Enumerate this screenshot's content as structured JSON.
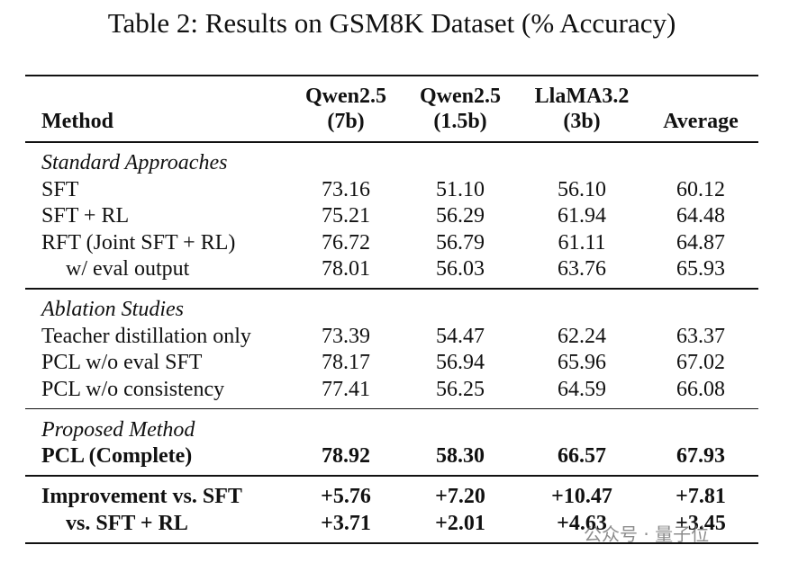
{
  "title": "Table 2: Results on GSM8K Dataset (% Accuracy)",
  "header": {
    "method": "Method",
    "columns": [
      [
        "Qwen2.5",
        "(7b)"
      ],
      [
        "Qwen2.5",
        "(1.5b)"
      ],
      [
        "LlaMA3.2",
        "(3b)"
      ],
      [
        "Average"
      ]
    ]
  },
  "sections": [
    {
      "title": "Standard Approaches",
      "rows": [
        {
          "method": "SFT",
          "values": [
            "73.16",
            "51.10",
            "56.10",
            "60.12"
          ]
        },
        {
          "method": "SFT + RL",
          "values": [
            "75.21",
            "56.29",
            "61.94",
            "64.48"
          ]
        },
        {
          "method": "RFT (Joint SFT + RL)",
          "values": [
            "76.72",
            "56.79",
            "61.11",
            "64.87"
          ]
        },
        {
          "method": "w/ eval output",
          "indent": true,
          "values": [
            "78.01",
            "56.03",
            "63.76",
            "65.93"
          ]
        }
      ]
    },
    {
      "title": "Ablation Studies",
      "rows": [
        {
          "method": "Teacher distillation only",
          "values": [
            "73.39",
            "54.47",
            "62.24",
            "63.37"
          ]
        },
        {
          "method": "PCL w/o eval SFT",
          "values": [
            "78.17",
            "56.94",
            "65.96",
            "67.02"
          ]
        },
        {
          "method": "PCL w/o consistency",
          "values": [
            "77.41",
            "56.25",
            "64.59",
            "66.08"
          ]
        }
      ]
    },
    {
      "title": "Proposed Method",
      "rows": [
        {
          "method": "PCL (Complete)",
          "bold": true,
          "values": [
            "78.92",
            "58.30",
            "66.57",
            "67.93"
          ]
        }
      ]
    },
    {
      "rows": [
        {
          "method": "Improvement vs. SFT",
          "bold": true,
          "values": [
            "+5.76",
            "+7.20",
            "+10.47",
            "+7.81"
          ]
        },
        {
          "method": "vs. SFT + RL",
          "bold": true,
          "indent": true,
          "values": [
            "+3.71",
            "+2.01",
            "+4.63",
            "+3.45"
          ]
        }
      ]
    }
  ],
  "watermark": "公众号 · 量子位"
}
